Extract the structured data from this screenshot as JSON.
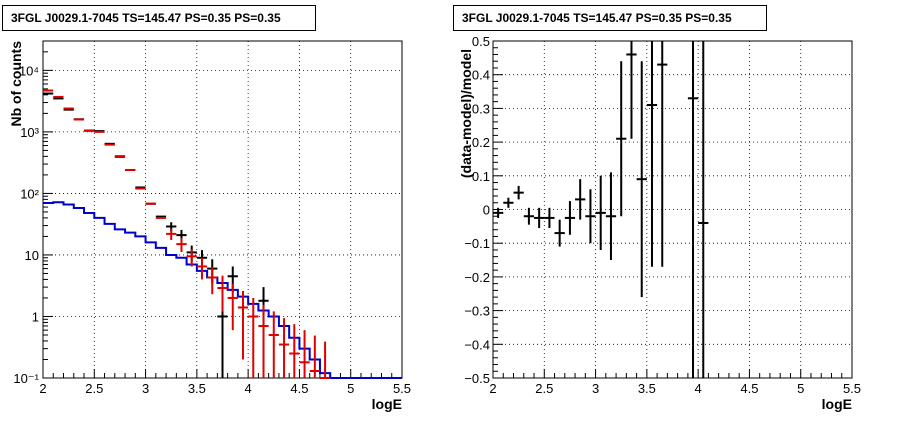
{
  "chart_data": [
    {
      "type": "histogram",
      "title": "3FGL J0029.1-7045 TS=145.47 PS=0.35 PS=0.35",
      "xlabel": "logE",
      "ylabel": "Nb of counts",
      "xlim": [
        2,
        5.5
      ],
      "ylim": [
        0.1,
        30000
      ],
      "yscale": "log",
      "grid": true,
      "x_ticks": [
        "2",
        "2.5",
        "3",
        "3.5",
        "4",
        "4.5",
        "5",
        "5.5"
      ],
      "y_ticks": [
        "10⁻¹",
        "1",
        "10",
        "10²",
        "10³",
        "10⁴"
      ],
      "colors": {
        "data": "#000000",
        "model_points": "#e00000",
        "background": "#0000cc"
      },
      "series": [
        {
          "type": "errorbar",
          "color": "#000000",
          "points": [
            [
              2.05,
              4200,
              0
            ],
            [
              2.15,
              3500,
              0
            ],
            [
              2.25,
              2300,
              0
            ],
            [
              2.35,
              1600,
              0
            ],
            [
              2.45,
              1050,
              0
            ],
            [
              2.55,
              1030,
              0
            ],
            [
              2.65,
              640,
              0
            ],
            [
              2.75,
              400,
              0
            ],
            [
              2.85,
              240,
              0
            ],
            [
              2.95,
              125,
              0
            ],
            [
              3.05,
              68,
              0
            ],
            [
              3.15,
              42,
              0
            ],
            [
              3.25,
              29,
              5
            ],
            [
              3.35,
              21,
              4.5
            ],
            [
              3.45,
              11,
              3.2
            ],
            [
              3.55,
              9,
              3
            ],
            [
              3.65,
              6,
              2.5
            ],
            [
              3.75,
              1,
              1
            ],
            [
              3.85,
              4.5,
              2
            ],
            [
              4.15,
              1.8,
              1.2
            ]
          ]
        },
        {
          "type": "errorbar",
          "color": "#e00000",
          "points": [
            [
              2.05,
              4700,
              0
            ],
            [
              2.15,
              3700,
              0
            ],
            [
              2.25,
              2400,
              0
            ],
            [
              2.35,
              1600,
              0
            ],
            [
              2.45,
              1040,
              0
            ],
            [
              2.55,
              1000,
              0
            ],
            [
              2.65,
              620,
              0
            ],
            [
              2.75,
              390,
              0
            ],
            [
              2.85,
              240,
              0
            ],
            [
              2.95,
              120,
              0
            ],
            [
              3.05,
              68,
              0
            ],
            [
              3.15,
              40,
              0
            ],
            [
              3.25,
              22,
              4.5
            ],
            [
              3.35,
              15,
              3.8
            ],
            [
              3.45,
              9.5,
              3
            ],
            [
              3.55,
              6.5,
              2.5
            ],
            [
              3.65,
              4.3,
              2
            ],
            [
              3.75,
              2.9,
              1.7
            ],
            [
              3.85,
              2.0,
              1.4
            ],
            [
              3.95,
              1.4,
              1.2
            ],
            [
              4.05,
              1.0,
              1.0
            ],
            [
              4.15,
              0.7,
              0.84
            ],
            [
              4.25,
              0.5,
              0.71
            ],
            [
              4.35,
              0.35,
              0.59
            ],
            [
              4.45,
              0.25,
              0.5
            ],
            [
              4.55,
              0.18,
              0.42
            ],
            [
              4.65,
              0.13,
              0.36
            ],
            [
              4.75,
              0.09,
              0.3
            ]
          ]
        },
        {
          "type": "step",
          "color": "#0000cc",
          "edges": [
            2.0,
            2.1,
            2.2,
            2.3,
            2.4,
            2.5,
            2.6,
            2.7,
            2.8,
            2.9,
            3.0,
            3.1,
            3.2,
            3.3,
            3.4,
            3.5,
            3.6,
            3.7,
            3.8,
            3.9,
            4.0,
            4.1,
            4.2,
            4.3,
            4.4,
            4.5,
            4.6,
            4.7,
            4.8,
            4.9,
            5.0,
            5.1,
            5.2,
            5.3,
            5.4,
            5.5
          ],
          "values": [
            70,
            72,
            66,
            58,
            48,
            40,
            32,
            26,
            23,
            20,
            16,
            13,
            10,
            9,
            7,
            5.5,
            4.3,
            3.5,
            2.7,
            2.1,
            1.6,
            1.25,
            1.0,
            0.7,
            0.45,
            0.3,
            0.2,
            0.12,
            0.1,
            0.1,
            0.1,
            0.1,
            0.1,
            0.1,
            0.1
          ]
        }
      ]
    },
    {
      "type": "errorbar",
      "title": "3FGL J0029.1-7045 TS=145.47 PS=0.35 PS=0.35",
      "xlabel": "logE",
      "ylabel": "(data-model)/model",
      "xlim": [
        2,
        5.5
      ],
      "ylim": [
        -0.5,
        0.5
      ],
      "grid": true,
      "x_ticks": [
        "2",
        "2.5",
        "3",
        "3.5",
        "4",
        "4.5",
        "5",
        "5.5"
      ],
      "y_ticks": [
        "−0.5",
        "−0.4",
        "−0.3",
        "−0.2",
        "−0.1",
        "0",
        "0.1",
        "0.2",
        "0.3",
        "0.4",
        "0.5"
      ],
      "series": [
        {
          "color": "#000000",
          "points": [
            [
              2.05,
              -0.01,
              0.015
            ],
            [
              2.15,
              0.02,
              0.015
            ],
            [
              2.25,
              0.05,
              0.02
            ],
            [
              2.35,
              -0.02,
              0.025
            ],
            [
              2.45,
              -0.025,
              0.03
            ],
            [
              2.55,
              -0.025,
              0.03
            ],
            [
              2.65,
              -0.07,
              0.04
            ],
            [
              2.75,
              -0.025,
              0.05
            ],
            [
              2.85,
              0.03,
              0.06
            ],
            [
              2.95,
              -0.02,
              0.08
            ],
            [
              3.05,
              -0.01,
              0.11
            ],
            [
              3.15,
              -0.02,
              0.13
            ],
            [
              3.25,
              0.21,
              0.23
            ],
            [
              3.35,
              0.46,
              0.25
            ],
            [
              3.45,
              0.09,
              0.35
            ],
            [
              3.55,
              0.31,
              0.48
            ],
            [
              3.65,
              0.43,
              0.6
            ],
            [
              3.95,
              0.33,
              1.3
            ],
            [
              4.05,
              -0.04,
              1.2
            ]
          ]
        }
      ]
    }
  ]
}
